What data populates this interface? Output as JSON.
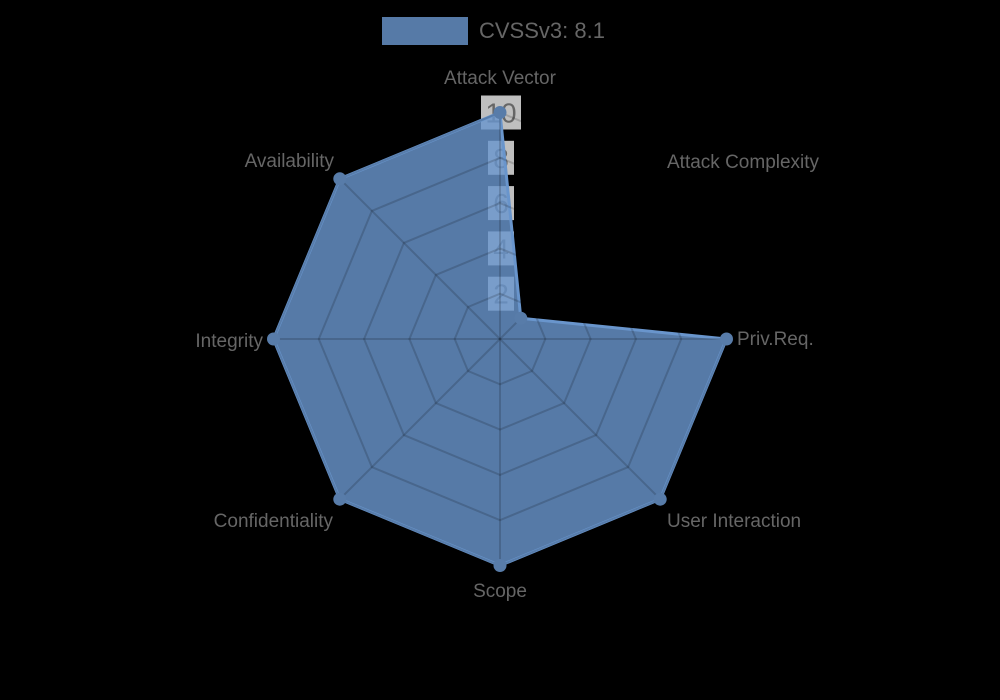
{
  "chart_data": {
    "type": "radar",
    "title": "",
    "legend": {
      "position": "top",
      "entries": [
        "CVSSv3: 8.1"
      ]
    },
    "axes": [
      "Attack Vector",
      "Attack Complexity",
      "Priv.Req.",
      "User Interaction",
      "Scope",
      "Confidentiality",
      "Integrity",
      "Availability"
    ],
    "series": [
      {
        "name": "CVSSv3: 8.1",
        "values": [
          10,
          1.3,
          10,
          10,
          10,
          10,
          10,
          10
        ],
        "fill_color": "rgba(105,149,204,0.82)",
        "border_color": "rgb(105,149,204)",
        "point_color": "#587ca9"
      }
    ],
    "r_axis": {
      "min": 0,
      "max": 10,
      "ticks": [
        2,
        4,
        6,
        8,
        10
      ],
      "tick_backdrop_color": "rgba(255,255,255,0.75)",
      "tick_text_color": "#666666",
      "grid": true,
      "grid_color": "rgba(0,0,0,0.16)"
    },
    "label_color": "#666666",
    "background_color": "#000000"
  }
}
